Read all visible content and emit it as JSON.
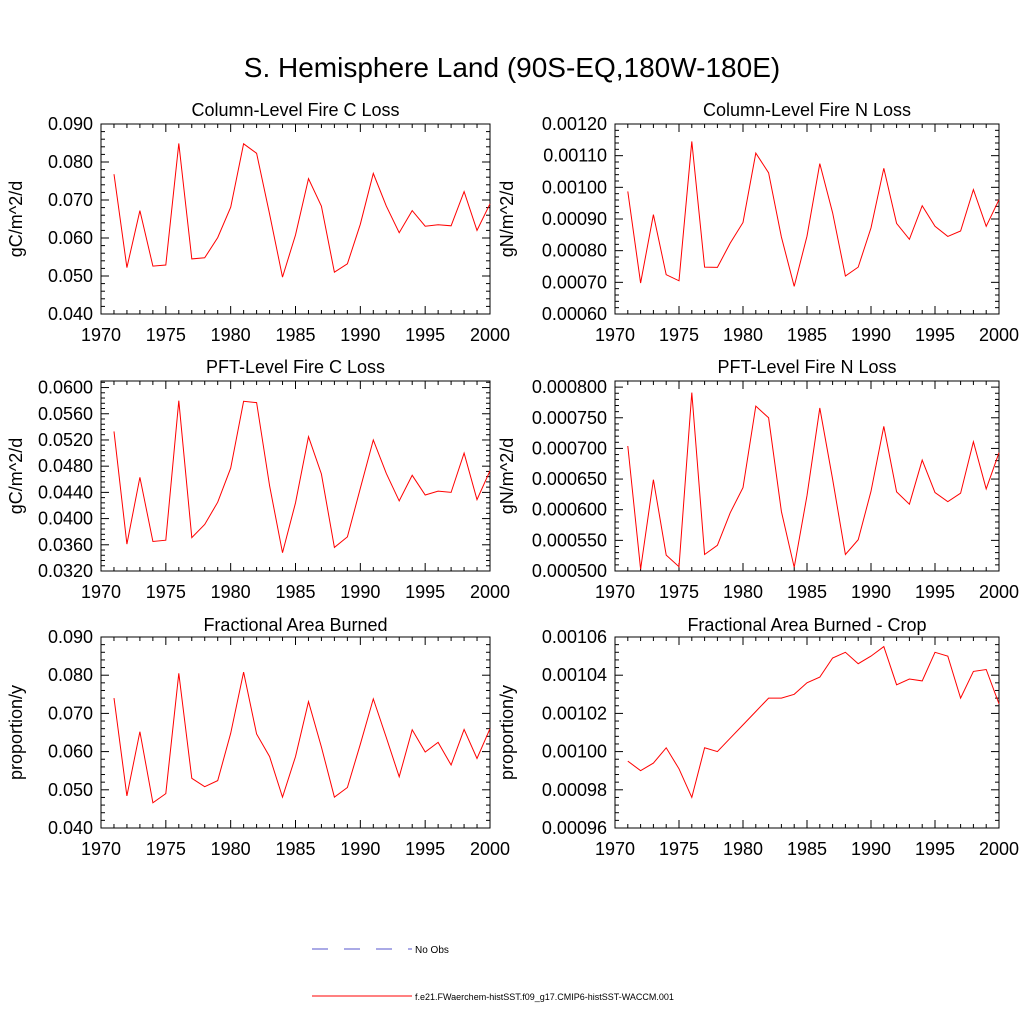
{
  "main_title": "S. Hemisphere Land (90S-EQ,180W-180E)",
  "colors": {
    "model": "#ff0000",
    "obs": "#5555cc",
    "axis": "#000000"
  },
  "legend": {
    "obs_label": "No Obs",
    "model_label": "f.e21.FWaerchem-histSST.f09_g17.CMIP6-histSST-WACCM.001"
  },
  "chart_data": [
    {
      "type": "line",
      "title": "Column-Level Fire C Loss",
      "ylabel": "gC/m^2/d",
      "xlim": [
        1970,
        2000
      ],
      "ylim": [
        0.04,
        0.09
      ],
      "xticks": [
        1970,
        1975,
        1980,
        1985,
        1990,
        1995,
        2000
      ],
      "yticks": [
        "0.040",
        "0.050",
        "0.060",
        "0.070",
        "0.080",
        "0.090"
      ],
      "x": [
        1971,
        1972,
        1973,
        1974,
        1975,
        1976,
        1977,
        1978,
        1979,
        1980,
        1981,
        1982,
        1983,
        1984,
        1985,
        1986,
        1987,
        1988,
        1989,
        1990,
        1991,
        1992,
        1993,
        1994,
        1995,
        1996,
        1997,
        1998,
        1999,
        2000
      ],
      "series": [
        {
          "values": [
            0.0768,
            0.0522,
            0.0672,
            0.0526,
            0.0529,
            0.0849,
            0.0545,
            0.0548,
            0.0601,
            0.0681,
            0.0848,
            0.0823,
            0.0663,
            0.0497,
            0.0608,
            0.0756,
            0.0684,
            0.051,
            0.0532,
            0.0636,
            0.077,
            0.0684,
            0.0614,
            0.0672,
            0.0631,
            0.0635,
            0.0632,
            0.0722,
            0.062,
            0.069
          ]
        }
      ]
    },
    {
      "type": "line",
      "title": "Column-Level Fire N Loss",
      "ylabel": "gN/m^2/d",
      "xlim": [
        1970,
        2000
      ],
      "ylim": [
        0.0006,
        0.0012
      ],
      "xticks": [
        1970,
        1975,
        1980,
        1985,
        1990,
        1995,
        2000
      ],
      "yticks": [
        "0.00060",
        "0.00070",
        "0.00080",
        "0.00090",
        "0.00100",
        "0.00110",
        "0.00120"
      ],
      "x": [
        1971,
        1972,
        1973,
        1974,
        1975,
        1976,
        1977,
        1978,
        1979,
        1980,
        1981,
        1982,
        1983,
        1984,
        1985,
        1986,
        1987,
        1988,
        1989,
        1990,
        1991,
        1992,
        1993,
        1994,
        1995,
        1996,
        1997,
        1998,
        1999,
        2000
      ],
      "series": [
        {
          "values": [
            0.000987,
            0.000698,
            0.000914,
            0.000724,
            0.000705,
            0.001145,
            0.000748,
            0.000747,
            0.000824,
            0.000889,
            0.001108,
            0.001046,
            0.000843,
            0.000687,
            0.000846,
            0.001075,
            0.00092,
            0.00072,
            0.000748,
            0.000872,
            0.00106,
            0.000886,
            0.000836,
            0.000942,
            0.000877,
            0.000845,
            0.000862,
            0.000993,
            0.000877,
            0.000961
          ]
        }
      ]
    },
    {
      "type": "line",
      "title": "PFT-Level Fire C Loss",
      "ylabel": "gC/m^2/d",
      "xlim": [
        1970,
        2000
      ],
      "ylim": [
        0.032,
        0.061
      ],
      "xticks": [
        1970,
        1975,
        1980,
        1985,
        1990,
        1995,
        2000
      ],
      "yticks": [
        "0.0320",
        "0.0360",
        "0.0400",
        "0.0440",
        "0.0480",
        "0.0520",
        "0.0560",
        "0.0600"
      ],
      "x": [
        1971,
        1972,
        1973,
        1974,
        1975,
        1976,
        1977,
        1978,
        1979,
        1980,
        1981,
        1982,
        1983,
        1984,
        1985,
        1986,
        1987,
        1988,
        1989,
        1990,
        1991,
        1992,
        1993,
        1994,
        1995,
        1996,
        1997,
        1998,
        1999,
        2000
      ],
      "series": [
        {
          "values": [
            0.0533,
            0.0361,
            0.0463,
            0.0365,
            0.0367,
            0.058,
            0.0371,
            0.0391,
            0.0425,
            0.0477,
            0.0579,
            0.0577,
            0.045,
            0.0348,
            0.0424,
            0.0525,
            0.0468,
            0.0356,
            0.0372,
            0.0446,
            0.052,
            0.0469,
            0.0427,
            0.0466,
            0.0436,
            0.0442,
            0.044,
            0.05,
            0.0429,
            0.0473
          ]
        }
      ]
    },
    {
      "type": "line",
      "title": "PFT-Level Fire N Loss",
      "ylabel": "gN/m^2/d",
      "xlim": [
        1970,
        2000
      ],
      "ylim": [
        0.0005,
        0.00081
      ],
      "xticks": [
        1970,
        1975,
        1980,
        1985,
        1990,
        1995,
        2000
      ],
      "yticks": [
        "0.000500",
        "0.000550",
        "0.000600",
        "0.000650",
        "0.000700",
        "0.000750",
        "0.000800"
      ],
      "x": [
        1971,
        1972,
        1973,
        1974,
        1975,
        1976,
        1977,
        1978,
        1979,
        1980,
        1981,
        1982,
        1983,
        1984,
        1985,
        1986,
        1987,
        1988,
        1989,
        1990,
        1991,
        1992,
        1993,
        1994,
        1995,
        1996,
        1997,
        1998,
        1999,
        2000
      ],
      "series": [
        {
          "values": [
            0.000704,
            0.000503,
            0.000649,
            0.000526,
            0.000507,
            0.000791,
            0.000527,
            0.000542,
            0.000595,
            0.000636,
            0.000769,
            0.00075,
            0.000597,
            0.000506,
            0.000623,
            0.000766,
            0.00065,
            0.000527,
            0.000551,
            0.00063,
            0.000736,
            0.000629,
            0.000609,
            0.000681,
            0.000628,
            0.000613,
            0.000627,
            0.000711,
            0.000634,
            0.000693
          ]
        }
      ]
    },
    {
      "type": "line",
      "title": "Fractional Area Burned",
      "ylabel": "proportion/y",
      "xlim": [
        1970,
        2000
      ],
      "ylim": [
        0.04,
        0.09
      ],
      "xticks": [
        1970,
        1975,
        1980,
        1985,
        1990,
        1995,
        2000
      ],
      "yticks": [
        "0.040",
        "0.050",
        "0.060",
        "0.070",
        "0.080",
        "0.090"
      ],
      "x": [
        1971,
        1972,
        1973,
        1974,
        1975,
        1976,
        1977,
        1978,
        1979,
        1980,
        1981,
        1982,
        1983,
        1984,
        1985,
        1986,
        1987,
        1988,
        1989,
        1990,
        1991,
        1992,
        1993,
        1994,
        1995,
        1996,
        1997,
        1998,
        1999,
        2000
      ],
      "series": [
        {
          "values": [
            0.074,
            0.0484,
            0.0652,
            0.0466,
            0.049,
            0.0805,
            0.053,
            0.0508,
            0.0524,
            0.0648,
            0.0808,
            0.0646,
            0.0587,
            0.0481,
            0.0587,
            0.0731,
            0.0612,
            0.0481,
            0.0506,
            0.0619,
            0.0738,
            0.0637,
            0.0534,
            0.0657,
            0.0599,
            0.0624,
            0.0565,
            0.0658,
            0.0582,
            0.066
          ]
        }
      ]
    },
    {
      "type": "line",
      "title": "Fractional Area Burned - Crop",
      "ylabel": "proportion/y",
      "xlim": [
        1970,
        2000
      ],
      "ylim": [
        0.00096,
        0.00106
      ],
      "xticks": [
        1970,
        1975,
        1980,
        1985,
        1990,
        1995,
        2000
      ],
      "yticks": [
        "0.00096",
        "0.00098",
        "0.00100",
        "0.00102",
        "0.00104",
        "0.00106"
      ],
      "x": [
        1971,
        1972,
        1973,
        1974,
        1975,
        1976,
        1977,
        1978,
        1979,
        1980,
        1981,
        1982,
        1983,
        1984,
        1985,
        1986,
        1987,
        1988,
        1989,
        1990,
        1991,
        1992,
        1993,
        1994,
        1995,
        1996,
        1997,
        1998,
        1999,
        2000
      ],
      "series": [
        {
          "values": [
            0.000995,
            0.00099,
            0.000994,
            0.001002,
            0.000991,
            0.000976,
            0.001002,
            0.001,
            0.001007,
            0.001014,
            0.001021,
            0.001028,
            0.001028,
            0.00103,
            0.001036,
            0.001039,
            0.001049,
            0.001052,
            0.001046,
            0.00105,
            0.001055,
            0.001035,
            0.001038,
            0.001037,
            0.001052,
            0.00105,
            0.001028,
            0.001042,
            0.001043,
            0.001025
          ]
        }
      ]
    }
  ]
}
